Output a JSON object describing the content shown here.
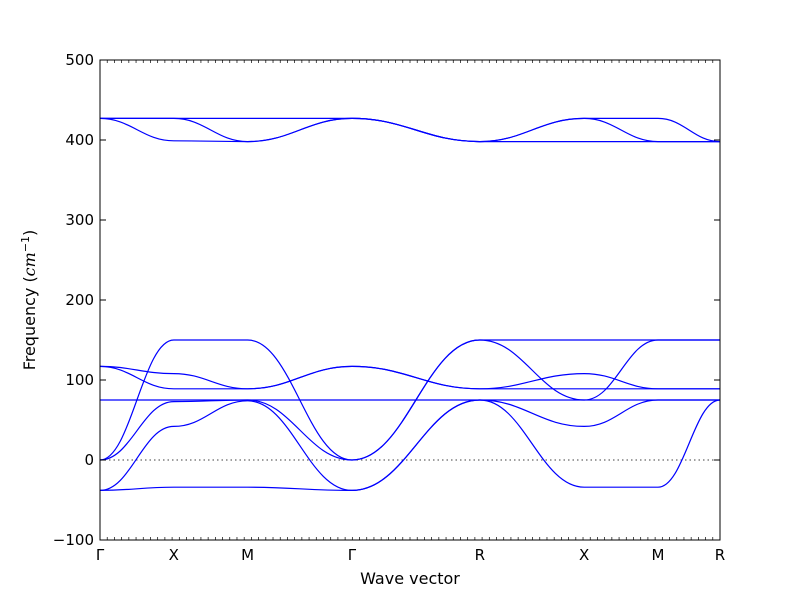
{
  "chart_data": {
    "type": "line",
    "title": "",
    "xlabel": "Wave vector",
    "ylabel": {
      "prefix": "Frequency (",
      "unit_base": "cm",
      "unit_exponent": "−1",
      "suffix": ")"
    },
    "ylim": [
      -100,
      500
    ],
    "yticks": [
      -100,
      0,
      100,
      200,
      300,
      400,
      500
    ],
    "ytick_labels": [
      "−100",
      "0",
      "100",
      "200",
      "300",
      "400",
      "500"
    ],
    "xticks": [
      {
        "label": "Γ",
        "x": 0.0
      },
      {
        "label": "X",
        "x": 0.5
      },
      {
        "label": "M",
        "x": 1.0
      },
      {
        "label": "Γ",
        "x": 1.707
      },
      {
        "label": "R",
        "x": 2.573
      },
      {
        "label": "X",
        "x": 3.28
      },
      {
        "label": "M",
        "x": 3.78
      },
      {
        "label": "R",
        "x": 4.2
      }
    ],
    "xlim": [
      0,
      4.2
    ],
    "zero_line": true,
    "line_color": "#0000ff",
    "series": [
      {
        "x": [
          0,
          0.5,
          1.0,
          1.707,
          2.573,
          3.28,
          3.78,
          4.2
        ],
        "y": [
          -38,
          -34,
          -34,
          -38,
          75,
          -34,
          -34,
          75
        ]
      },
      {
        "x": [
          0,
          0.5,
          1.0,
          1.707,
          2.573,
          3.28,
          3.78,
          4.2
        ],
        "y": [
          -38,
          42,
          74,
          -38,
          75,
          42,
          75,
          75
        ]
      },
      {
        "x": [
          0,
          0.5,
          1.0,
          1.707,
          2.573,
          3.28,
          3.78,
          4.2
        ],
        "y": [
          0,
          73,
          75,
          0,
          150,
          75,
          150,
          150
        ]
      },
      {
        "x": [
          0,
          0.5,
          1.0,
          1.707,
          2.573,
          3.28,
          3.78,
          4.2
        ],
        "y": [
          75,
          75,
          75,
          75,
          75,
          75,
          75,
          75
        ]
      },
      {
        "x": [
          0,
          0.5,
          1.0,
          1.707,
          2.573,
          3.28,
          3.78,
          4.2
        ],
        "y": [
          0,
          150,
          150,
          0,
          150,
          150,
          150,
          150
        ]
      },
      {
        "x": [
          0,
          0.5,
          1.0,
          1.707,
          2.573,
          3.28,
          3.78,
          4.2
        ],
        "y": [
          117,
          89,
          89,
          117,
          89,
          89,
          89,
          89
        ]
      },
      {
        "x": [
          0,
          0.5,
          1.0,
          1.707,
          2.573,
          3.28,
          3.78,
          4.2
        ],
        "y": [
          117,
          108,
          89,
          117,
          89,
          108,
          89,
          89
        ]
      },
      {
        "x": [
          0,
          0.5,
          1.0,
          1.707,
          2.573,
          3.28,
          3.78,
          4.2
        ],
        "y": [
          427,
          399,
          398,
          427,
          398,
          398,
          398,
          398
        ]
      },
      {
        "x": [
          0,
          0.5,
          1.0,
          1.707,
          2.573,
          3.28,
          3.78,
          4.2
        ],
        "y": [
          427,
          427,
          398,
          427,
          398,
          427,
          398,
          398
        ]
      },
      {
        "x": [
          0,
          0.5,
          1.0,
          1.707,
          2.573,
          3.28,
          3.78,
          4.2
        ],
        "y": [
          427,
          427,
          427,
          427,
          398,
          427,
          427,
          398
        ]
      }
    ]
  }
}
